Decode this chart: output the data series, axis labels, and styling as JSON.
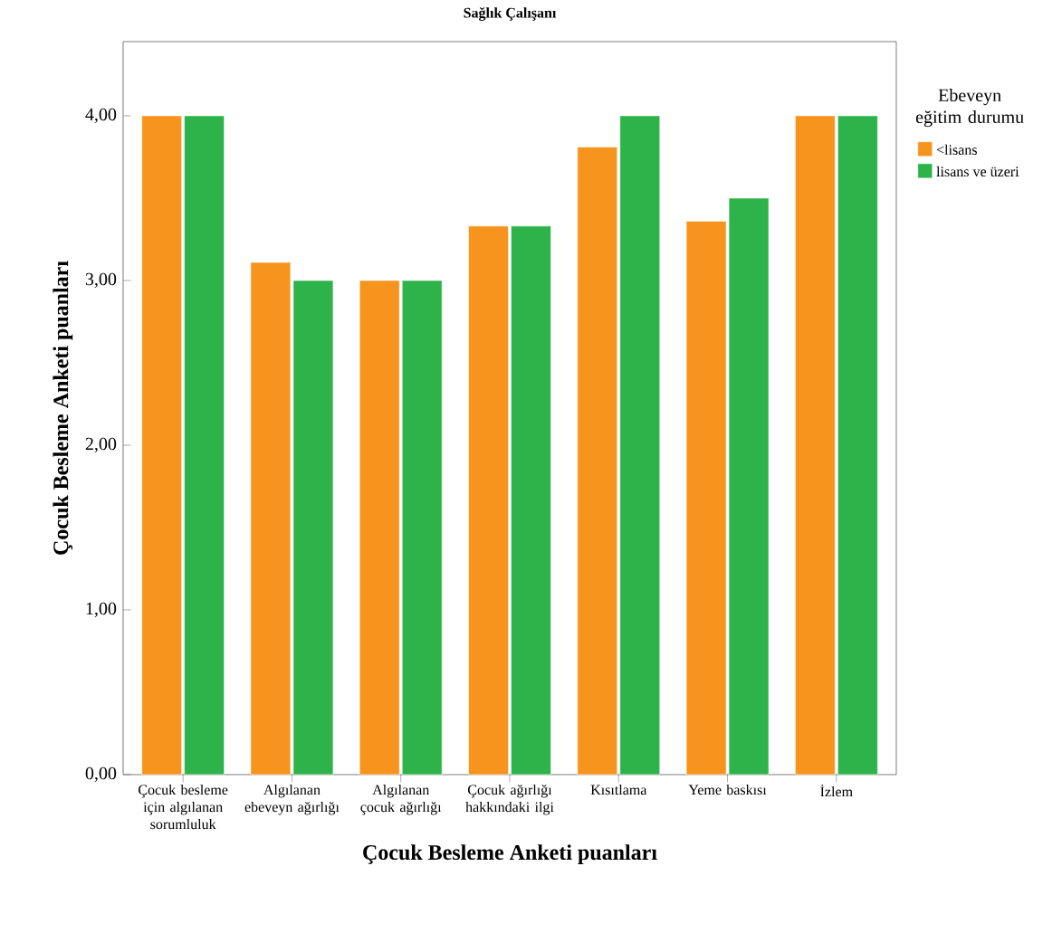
{
  "chart_data": {
    "type": "bar",
    "title": "Sağlık Çalışanı",
    "xlabel": "Çocuk Besleme Anketi puanları",
    "ylabel": "Çocuk Besleme Anketi puanları",
    "legend_title": "Ebeveyn eğitim durumu",
    "categories": [
      "Çocuk besleme için algılanan sorumluluk",
      "Algılanan ebeveyn ağırlığı",
      "Algılanan çocuk ağırlığı",
      "Çocuk ağırlığı hakkındaki ilgi",
      "Kısıtlama",
      "Yeme baskısı",
      "İzlem"
    ],
    "series": [
      {
        "name": "<lisans",
        "color": "#f7941d",
        "values": [
          4.0,
          3.11,
          3.0,
          3.33,
          3.81,
          3.36,
          4.0
        ]
      },
      {
        "name": "lisans ve üzeri",
        "color": "#2db34a",
        "values": [
          4.0,
          3.0,
          3.0,
          3.33,
          4.0,
          3.5,
          4.0
        ]
      }
    ],
    "ylim": [
      0,
      4.45
    ],
    "yticks": [
      {
        "value": 0,
        "label": "0,00"
      },
      {
        "value": 1,
        "label": "1,00"
      },
      {
        "value": 2,
        "label": "2,00"
      },
      {
        "value": 3,
        "label": "3,00"
      },
      {
        "value": 4,
        "label": "4,00"
      }
    ],
    "legend": "right",
    "grid": false
  }
}
